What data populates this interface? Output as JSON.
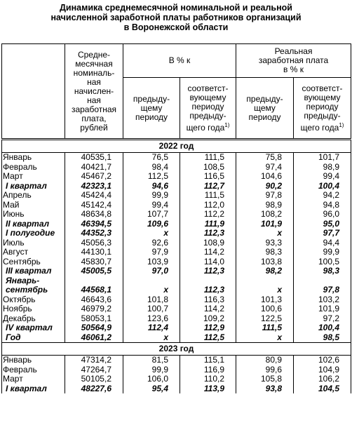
{
  "title": [
    "Динамика среднемесячной номинальной и реальной",
    "начисленной заработной платы работников организаций",
    "в Воронежской области"
  ],
  "header": {
    "col1": [
      "Средне-",
      "месячная",
      "номиналь-",
      "ная",
      "начислен-",
      "ная",
      "заработная",
      "плата,",
      "рублей"
    ],
    "group1": [
      "В % к"
    ],
    "group2": [
      "Реальная",
      "заработная плата",
      "в % к"
    ],
    "prev": [
      "предыду-",
      "щему",
      "периоду"
    ],
    "same": [
      "соответст-",
      "вующему",
      "периоду",
      "предыду-",
      "щего года"
    ],
    "note": "1)"
  },
  "sections": [
    {
      "title": "2022 год",
      "rows": [
        {
          "label": [
            "Январь"
          ],
          "values": [
            "40535,1",
            "76,5",
            "111,5",
            "75,8",
            "101,7"
          ]
        },
        {
          "label": [
            "Февраль"
          ],
          "values": [
            "40421,7",
            "98,4",
            "108,5",
            "97,4",
            "98,9"
          ]
        },
        {
          "label": [
            "Март"
          ],
          "values": [
            "45467,2",
            "112,5",
            "116,5",
            "104,6",
            "99,4"
          ]
        },
        {
          "label": [
            "I квартал"
          ],
          "values": [
            "42323,1",
            "94,6",
            "112,7",
            "90,2",
            "100,4"
          ],
          "bold": true
        },
        {
          "label": [
            "Апрель"
          ],
          "values": [
            "45424,4",
            "99,9",
            "111,5",
            "97,8",
            "94,2"
          ]
        },
        {
          "label": [
            "Май"
          ],
          "values": [
            "45142,4",
            "99,4",
            "112,0",
            "98,9",
            "94,8"
          ]
        },
        {
          "label": [
            "Июнь"
          ],
          "values": [
            "48634,8",
            "107,7",
            "112,2",
            "108,2",
            "96,0"
          ]
        },
        {
          "label": [
            "II квартал"
          ],
          "values": [
            "46394,5",
            "109,6",
            "111,9",
            "101,9",
            "95,0"
          ],
          "bold": true
        },
        {
          "label": [
            "I полугодие"
          ],
          "values": [
            "44352,3",
            "x",
            "112,3",
            "x",
            "97,7"
          ],
          "bold": true
        },
        {
          "label": [
            "Июль"
          ],
          "values": [
            "45056,3",
            "92,6",
            "108,9",
            "93,3",
            "94,4"
          ]
        },
        {
          "label": [
            "Август"
          ],
          "values": [
            "44130,1",
            "97,9",
            "114,2",
            "98,3",
            "99,9"
          ]
        },
        {
          "label": [
            "Сентябрь"
          ],
          "values": [
            "45830,7",
            "103,9",
            "114,0",
            "103,8",
            "100,5"
          ]
        },
        {
          "label": [
            "III квартал"
          ],
          "values": [
            "45005,5",
            "97,0",
            "112,3",
            "98,2",
            "98,3"
          ],
          "bold": true
        },
        {
          "label": [
            "Январь-",
            "сентябрь"
          ],
          "values": [
            "44568,1",
            "x",
            "112,3",
            "x",
            "97,8"
          ],
          "bold": true
        },
        {
          "label": [
            "Октябрь"
          ],
          "values": [
            "46643,6",
            "101,8",
            "116,3",
            "101,3",
            "103,2"
          ]
        },
        {
          "label": [
            "Ноябрь"
          ],
          "values": [
            "46979,2",
            "100,7",
            "114,2",
            "100,6",
            "101,9"
          ]
        },
        {
          "label": [
            "Декабрь"
          ],
          "values": [
            "58053,1",
            "123,6",
            "109,2",
            "122,5",
            "97,2"
          ]
        },
        {
          "label": [
            "IV квартал"
          ],
          "values": [
            "50564,9",
            "112,4",
            "112,9",
            "111,5",
            "100,4"
          ],
          "bold": true
        },
        {
          "label": [
            "Год"
          ],
          "values": [
            "46061,2",
            "x",
            "112,5",
            "x",
            "98,5"
          ],
          "bold": true
        }
      ]
    },
    {
      "title": "2023 год",
      "rows": [
        {
          "label": [
            "Январь"
          ],
          "values": [
            "47314,2",
            "81,5",
            "115,1",
            "80,9",
            "102,6"
          ]
        },
        {
          "label": [
            "Февраль"
          ],
          "values": [
            "47264,7",
            "99,9",
            "116,9",
            "99,6",
            "104,9"
          ]
        },
        {
          "label": [
            "Март"
          ],
          "values": [
            "50105,2",
            "106,0",
            "110,2",
            "105,8",
            "106,2"
          ]
        },
        {
          "label": [
            "I квартал"
          ],
          "values": [
            "48227,6",
            "95,4",
            "113,9",
            "93,8",
            "104,5"
          ],
          "bold": true
        }
      ]
    }
  ]
}
